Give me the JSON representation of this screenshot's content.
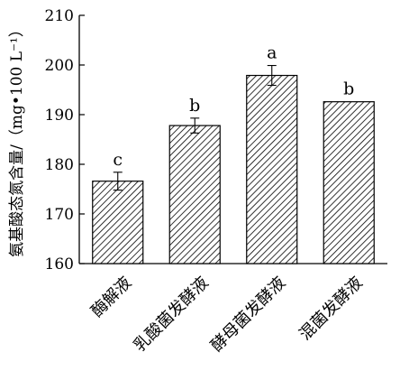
{
  "chart_data": {
    "type": "bar",
    "title": "",
    "xlabel": "",
    "ylabel": "氨基酸态氮含量/（mg•100 L⁻¹）",
    "ylim": [
      160,
      210
    ],
    "yticks": [
      160,
      170,
      180,
      190,
      200,
      210
    ],
    "categories": [
      "酶解液",
      "乳酸菌发酵液",
      "酵母菌发酵液",
      "混菌发酵液"
    ],
    "values": [
      176.6,
      187.8,
      197.9,
      192.6
    ],
    "errors": [
      1.8,
      1.5,
      2.0,
      0
    ],
    "significance_labels": [
      "c",
      "b",
      "a",
      "b"
    ],
    "bar_pattern": "diagonal-hatch",
    "grid": false,
    "legend": "none"
  }
}
